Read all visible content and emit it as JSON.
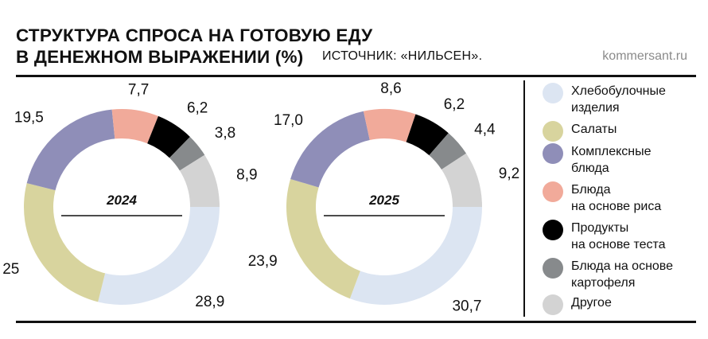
{
  "title_lines": [
    "СТРУКТУРА СПРОСА НА ГОТОВУЮ ЕДУ",
    "В ДЕНЕЖНОМ ВЫРАЖЕНИИ (%)"
  ],
  "source": "ИСТОЧНИК: «НИЛЬСЕН».",
  "site": "kommersant.ru",
  "colors": {
    "Хлебобулочные изделия": "#dce5f2",
    "Салаты": "#d8d49e",
    "Комплексные блюда": "#8f8eb8",
    "Блюда на основе риса": "#f1aa9a",
    "Продукты на основе теста": "#000000",
    "Блюда на основе картофеля": "#878a8c",
    "Другое": "#d3d3d3"
  },
  "legend": [
    {
      "label": "Хлебобулочные\nизделия",
      "series": "Хлебобулочные изделия"
    },
    {
      "label": "Салаты",
      "series": "Салаты"
    },
    {
      "label": "Комплексные\nблюда",
      "series": "Комплексные блюда"
    },
    {
      "label": "Блюда\nна основе риса",
      "series": "Блюда на основе риса"
    },
    {
      "label": "Продукты\nна основе теста",
      "series": "Продукты на основе теста"
    },
    {
      "label": "Блюда на основе\nкартофеля",
      "series": "Блюда на основе картофеля"
    },
    {
      "label": "Другое",
      "series": "Другое"
    }
  ],
  "chart_data": [
    {
      "type": "pie",
      "donut": true,
      "center_label": "2024",
      "categories": [
        "Хлебобулочные изделия",
        "Салаты",
        "Комплексные блюда",
        "Блюда на основе риса",
        "Продукты на основе теста",
        "Блюда на основе картофеля",
        "Другое"
      ],
      "values": [
        28.9,
        25,
        19.5,
        7.7,
        6.2,
        3.8,
        8.9
      ],
      "value_labels": [
        "28,9",
        "25",
        "19,5",
        "7,7",
        "6,2",
        "3,8",
        "8,9"
      ]
    },
    {
      "type": "pie",
      "donut": true,
      "center_label": "2025",
      "categories": [
        "Хлебобулочные изделия",
        "Салаты",
        "Комплексные блюда",
        "Блюда на основе риса",
        "Продукты на основе теста",
        "Блюда на основе картофеля",
        "Другое"
      ],
      "values": [
        30.7,
        23.9,
        17.0,
        8.6,
        6.2,
        4.4,
        9.2
      ],
      "value_labels": [
        "30,7",
        "23,9",
        "17,0",
        "8,6",
        "6,2",
        "4,4",
        "9,2"
      ]
    }
  ]
}
